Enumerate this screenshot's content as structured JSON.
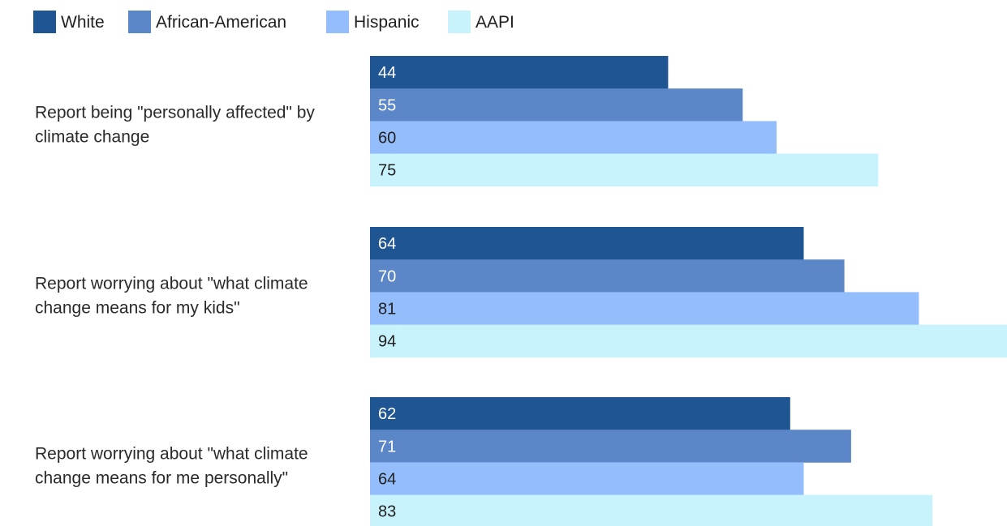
{
  "chart_data": {
    "type": "bar",
    "orientation": "horizontal",
    "categories": [
      [
        "Report being \"personally affected\" by",
        "climate change"
      ],
      [
        "Report worrying about \"what climate",
        "change means for my kids\""
      ],
      [
        "Report worrying about \"what climate",
        "change means for me personally\""
      ]
    ],
    "series": [
      {
        "name": "White",
        "color": "#1f5592",
        "label_color": "#ffffff",
        "values": [
          44,
          64,
          62
        ]
      },
      {
        "name": "African-American",
        "color": "#5b86c8",
        "label_color": "#ffffff",
        "values": [
          55,
          70,
          71
        ]
      },
      {
        "name": "Hispanic",
        "color": "#93bdfb",
        "label_color": "#1f1f1f",
        "values": [
          60,
          81,
          64
        ]
      },
      {
        "name": "AAPI",
        "color": "#c8f3fd",
        "label_color": "#1f1f1f",
        "values": [
          75,
          94,
          83
        ]
      }
    ],
    "xlim": [
      0,
      94
    ],
    "legend_position": "top-left",
    "grid": false
  }
}
